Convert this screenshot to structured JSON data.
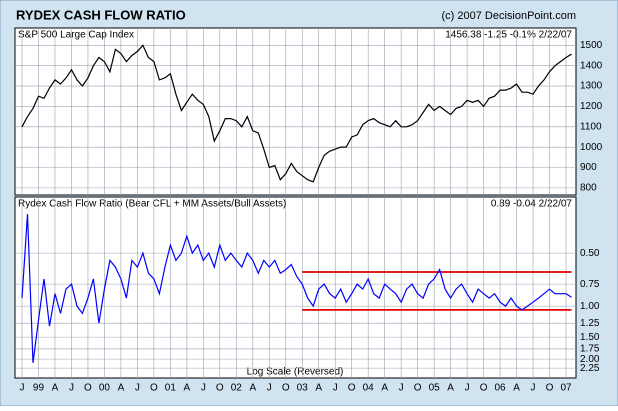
{
  "header": {
    "title": "RYDEX CASH FLOW RATIO",
    "credit": "(c) 2007 DecisionPoint.com"
  },
  "chart_data": [
    {
      "type": "line",
      "title": "S&P 500 Large Cap Index",
      "stats": "1456.38  -1.25  -0.1%  2/22/07",
      "series": [
        {
          "color": "#000000",
          "values": [
            1100,
            1150,
            1190,
            1250,
            1240,
            1290,
            1330,
            1310,
            1340,
            1380,
            1330,
            1300,
            1340,
            1400,
            1440,
            1420,
            1370,
            1480,
            1460,
            1420,
            1450,
            1470,
            1500,
            1440,
            1420,
            1330,
            1340,
            1360,
            1260,
            1180,
            1220,
            1260,
            1230,
            1210,
            1150,
            1030,
            1080,
            1140,
            1140,
            1130,
            1100,
            1150,
            1080,
            1070,
            990,
            900,
            910,
            840,
            870,
            920,
            880,
            860,
            840,
            830,
            900,
            960,
            980,
            990,
            1000,
            1000,
            1050,
            1060,
            1110,
            1130,
            1140,
            1120,
            1110,
            1100,
            1130,
            1100,
            1100,
            1110,
            1130,
            1170,
            1210,
            1180,
            1200,
            1180,
            1160,
            1190,
            1200,
            1230,
            1220,
            1230,
            1200,
            1240,
            1250,
            1280,
            1280,
            1290,
            1310,
            1270,
            1270,
            1260,
            1300,
            1330,
            1370,
            1400,
            1420,
            1440,
            1456.38
          ]
        }
      ],
      "ylim": [
        765,
        1585
      ],
      "yticks": [
        800,
        900,
        1000,
        1100,
        1200,
        1300,
        1400,
        1500
      ],
      "grid": true
    },
    {
      "type": "line",
      "title": "Rydex Cash Flow Ratio (Bear CFL + MM Assets/Bull Assets)",
      "stats": "0.89  -0.04  2/22/07",
      "note": "Log Scale (Reversed)",
      "log_scale": true,
      "reversed": true,
      "categories": [
        "J",
        null,
        null,
        "99",
        null,
        null,
        "A",
        null,
        null,
        "J",
        null,
        null,
        "O",
        null,
        null,
        "00",
        null,
        null,
        "A",
        null,
        null,
        "J",
        null,
        null,
        "O",
        null,
        null,
        "01",
        null,
        null,
        "A",
        null,
        null,
        "J",
        null,
        null,
        "O",
        null,
        null,
        "02",
        null,
        null,
        "A",
        null,
        null,
        "J",
        null,
        null,
        "O",
        null,
        null,
        "03",
        null,
        null,
        "A",
        null,
        null,
        "J",
        null,
        null,
        "O",
        null,
        null,
        "04",
        null,
        null,
        "A",
        null,
        null,
        "J",
        null,
        null,
        "O",
        null,
        null,
        "05",
        null,
        null,
        "A",
        null,
        null,
        "J",
        null,
        null,
        "O",
        null,
        null,
        "06",
        null,
        null,
        "A",
        null,
        null,
        "J",
        null,
        null,
        "O",
        null,
        null,
        "07",
        null
      ],
      "series": [
        {
          "color": "#0000ff",
          "values": [
            0.9,
            0.3,
            2.1,
            1.2,
            0.7,
            1.3,
            0.85,
            1.1,
            0.8,
            0.75,
            1.0,
            1.1,
            0.9,
            0.7,
            1.25,
            0.8,
            0.55,
            0.6,
            0.7,
            0.9,
            0.55,
            0.6,
            0.5,
            0.65,
            0.7,
            0.85,
            0.6,
            0.45,
            0.55,
            0.5,
            0.4,
            0.5,
            0.45,
            0.55,
            0.5,
            0.6,
            0.45,
            0.55,
            0.5,
            0.55,
            0.6,
            0.5,
            0.55,
            0.65,
            0.55,
            0.6,
            0.55,
            0.65,
            0.62,
            0.58,
            0.68,
            0.75,
            0.9,
            1.0,
            0.8,
            0.75,
            0.85,
            0.9,
            0.8,
            0.95,
            0.85,
            0.75,
            0.8,
            0.7,
            0.85,
            0.9,
            0.75,
            0.8,
            0.85,
            0.95,
            0.8,
            0.75,
            0.85,
            0.9,
            0.75,
            0.7,
            0.62,
            0.8,
            0.9,
            0.8,
            0.75,
            0.85,
            0.95,
            0.8,
            0.85,
            0.9,
            0.85,
            0.95,
            1.0,
            0.9,
            1.0,
            1.05,
            1.0,
            0.95,
            0.9,
            0.85,
            0.8,
            0.85,
            0.85,
            0.85,
            0.89
          ]
        }
      ],
      "ylim": [
        0.24,
        2.56
      ],
      "yticks": [
        {
          "value": 0.5,
          "label": "0.50"
        },
        0.75,
        {
          "value": 1,
          "label": "1.00"
        },
        1.25,
        {
          "value": 1.5,
          "label": "1.50"
        },
        1.75,
        {
          "value": 2,
          "label": "2.00"
        },
        2.25
      ],
      "grid": true,
      "reference_lines": [
        {
          "value": 0.64,
          "color": "#e00000",
          "start": "03"
        },
        {
          "value": 1.05,
          "color": "#e00000",
          "start": "03"
        }
      ]
    }
  ]
}
